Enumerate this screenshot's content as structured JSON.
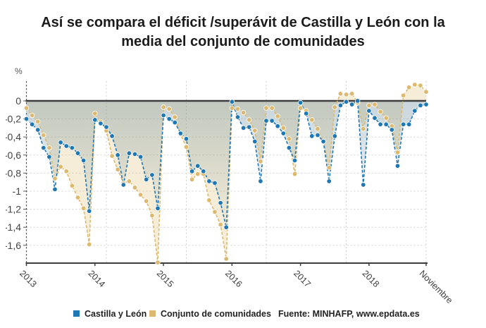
{
  "title": {
    "line1": "Así se compara el déficit /superávit de Castilla y León con la",
    "line2": "media del conjunto de comunidades"
  },
  "axis": {
    "unit_label": "%",
    "y_tick_labels": [
      "0",
      "-0,2",
      "-0,4",
      "-0,6",
      "-0,8",
      "-1",
      "-1,2",
      "-1,4",
      "-1,6"
    ],
    "x_tick_labels": [
      "2013",
      "2014",
      "2015",
      "2016",
      "2017",
      "2018",
      "Noviembre"
    ]
  },
  "legend": {
    "items": [
      {
        "label": "Castilla y León",
        "color": "#1f77b4"
      },
      {
        "label": "Conjunto de comunidades",
        "color": "#dcb96e"
      }
    ]
  },
  "source_text": "Fuente: MINHAFP, www.epdata.es",
  "colors": {
    "castilla_blue": "#1f77b4",
    "conjunto_tan": "#dcb96e",
    "zero_line": "#3d3d3d",
    "axis_line": "#3d3d3d",
    "gridline": "#d2d2d2",
    "tick_text": "#3a3a3a",
    "blue_fill": "rgba(73,116,135,0.30)",
    "tan_fill": "rgba(223,189,114,0.28)"
  },
  "chart_data": {
    "type": "line",
    "title": "Así se compara el déficit /superávit de Castilla y León con la media del conjunto de comunidades",
    "xlabel": "",
    "ylabel": "%",
    "ylim": [
      -1.8,
      0.2
    ],
    "grid": true,
    "legend_position": "bottom",
    "x_tick_labels": [
      "2013",
      "2014",
      "2015",
      "2016",
      "2017",
      "2018",
      "Noviembre"
    ],
    "x_description": "Monthly points, January 2013 to November 2018 (71 points per series); deficit/surplus in % of GDP, cumulative within each year",
    "series": [
      {
        "name": "Castilla y León",
        "color": "#1f77b4",
        "values": [
          -0.2,
          -0.26,
          -0.32,
          -0.52,
          -0.62,
          -0.98,
          -0.46,
          -0.5,
          -0.52,
          -0.58,
          -0.66,
          -1.22,
          -0.21,
          -0.25,
          -0.29,
          -0.39,
          -0.6,
          -0.93,
          -0.58,
          -0.59,
          -0.62,
          -0.87,
          -0.82,
          -1.19,
          -0.16,
          -0.2,
          -0.24,
          -0.36,
          -0.42,
          -0.78,
          -0.72,
          -0.78,
          -0.89,
          -0.91,
          -1.13,
          -1.4,
          -0.01,
          -0.18,
          -0.3,
          -0.29,
          -0.45,
          -0.89,
          -0.22,
          -0.22,
          -0.28,
          -0.36,
          -0.52,
          -0.66,
          -0.02,
          -0.14,
          -0.39,
          -0.38,
          -0.45,
          -0.89,
          -0.39,
          -0.05,
          -0.01,
          -0.04,
          0.0,
          -0.93,
          -0.11,
          -0.19,
          -0.26,
          -0.26,
          -0.32,
          -0.72,
          -0.26,
          -0.26,
          -0.11,
          -0.05,
          -0.04
        ]
      },
      {
        "name": "Conjunto de comunidades",
        "color": "#dcb96e",
        "values": [
          -0.08,
          -0.16,
          -0.23,
          -0.38,
          -0.52,
          -0.86,
          -0.73,
          -0.78,
          -0.94,
          -1.07,
          -1.19,
          -1.59,
          -0.14,
          -0.23,
          -0.33,
          -0.61,
          -0.76,
          -0.91,
          -0.89,
          -0.96,
          -1.04,
          -1.11,
          -1.27,
          -1.79,
          -0.07,
          -0.09,
          -0.18,
          -0.37,
          -0.51,
          -0.87,
          -0.81,
          -0.81,
          -1.1,
          -1.23,
          -1.37,
          -1.75,
          -0.08,
          -0.09,
          -0.13,
          -0.21,
          -0.33,
          -0.67,
          -0.08,
          -0.08,
          -0.17,
          -0.3,
          -0.42,
          -0.81,
          -0.08,
          -0.11,
          -0.21,
          -0.31,
          -0.45,
          -0.74,
          -0.07,
          0.08,
          0.07,
          0.08,
          -0.02,
          -0.31,
          -0.05,
          -0.04,
          -0.12,
          -0.19,
          -0.28,
          -0.57,
          0.06,
          0.15,
          0.18,
          0.17,
          0.1
        ]
      }
    ]
  }
}
